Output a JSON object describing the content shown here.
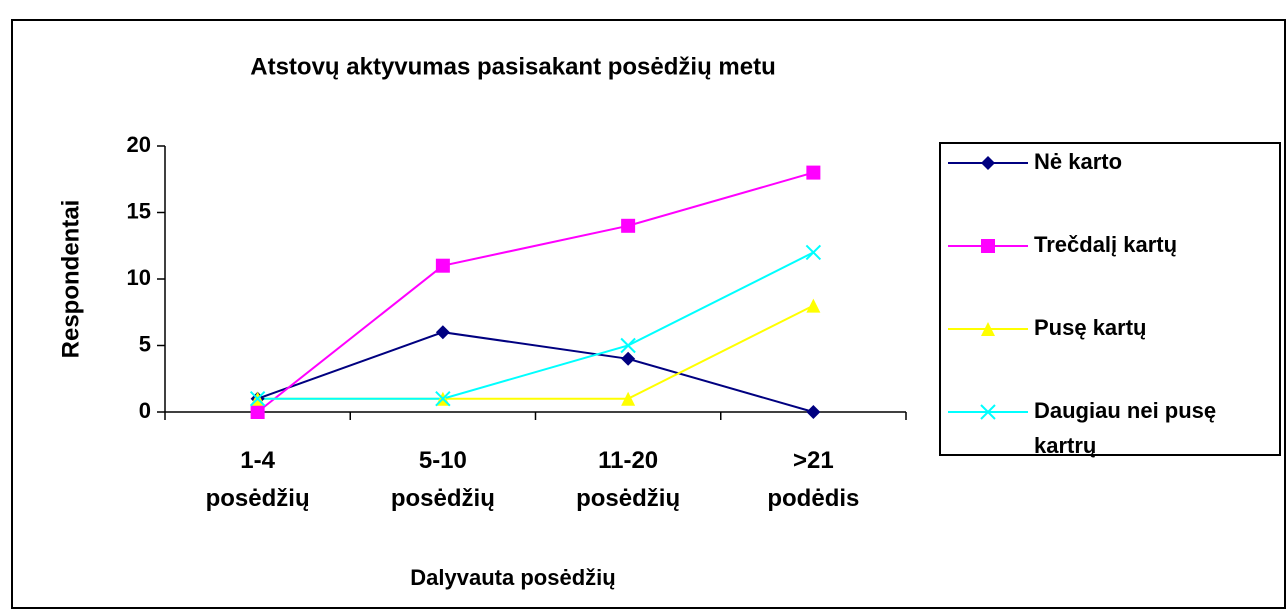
{
  "chart_data": {
    "type": "line",
    "title": "Atstovų aktyvumas  pasisakant  posėdžių metu",
    "xlabel": "Dalyvauta posėdžių",
    "ylabel": "Respondentai",
    "categories": [
      "1-4 posėdžių",
      "5-10 posėdžių",
      "11-20 posėdžių",
      ">21 podėdis"
    ],
    "ylim": [
      0,
      20
    ],
    "yticks": [
      0,
      5,
      10,
      15,
      20
    ],
    "legend": "right",
    "series": [
      {
        "name": "Nė karto",
        "color": "#000080",
        "marker": "diamond",
        "values": [
          1,
          6,
          4,
          0
        ]
      },
      {
        "name": "Trečdalį kartų",
        "color": "#ff00ff",
        "marker": "square",
        "values": [
          0,
          11,
          14,
          18
        ]
      },
      {
        "name": "Pusę kartų",
        "color": "#ffff00",
        "marker": "triangle",
        "values": [
          1,
          1,
          1,
          8
        ]
      },
      {
        "name": "Daugiau nei pusę kartrų",
        "color": "#00ffff",
        "marker": "x",
        "values": [
          1,
          1,
          5,
          12
        ]
      }
    ]
  }
}
